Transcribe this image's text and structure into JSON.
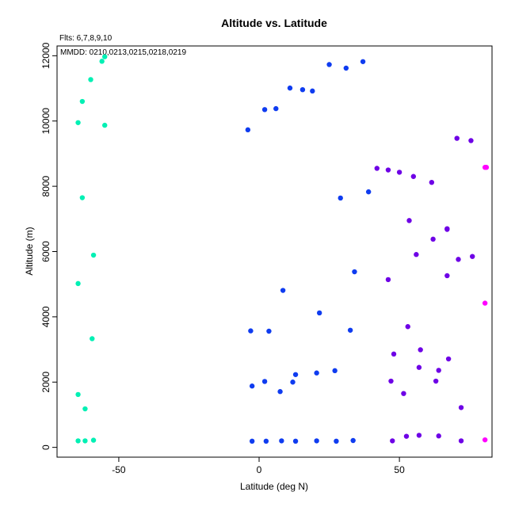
{
  "chart_data": {
    "type": "scatter",
    "title": "Altitude vs. Latitude",
    "xlabel": "Latitude (deg N)",
    "ylabel": "Altitude (m)",
    "annotations": [
      "Flts: 6,7,8,9,10",
      "MMDD: 0210,0213,0215,0218,0219"
    ],
    "xlim": [
      -72,
      83
    ],
    "ylim": [
      -300,
      12300
    ],
    "xticks": [
      -50,
      0,
      50
    ],
    "yticks": [
      0,
      2000,
      4000,
      6000,
      8000,
      10000,
      12000
    ],
    "grid": false,
    "legend": "none",
    "series": [
      {
        "color": "#00f0b4",
        "points": [
          [
            -55,
            11970
          ],
          [
            -56,
            11830
          ],
          [
            -60,
            11270
          ],
          [
            -63,
            10600
          ],
          [
            -64.5,
            9950
          ],
          [
            -55,
            9870
          ],
          [
            -63,
            7650
          ],
          [
            -59,
            5890
          ],
          [
            -64.5,
            5020
          ],
          [
            -59.5,
            3330
          ],
          [
            -64.5,
            1620
          ],
          [
            -62,
            1180
          ],
          [
            -64.5,
            200
          ],
          [
            -62,
            200
          ],
          [
            -59,
            220
          ]
        ]
      },
      {
        "color": "#0f3cf0",
        "points": [
          [
            37,
            11820
          ],
          [
            25,
            11730
          ],
          [
            31,
            11620
          ],
          [
            11,
            11010
          ],
          [
            15.5,
            10960
          ],
          [
            19,
            10920
          ],
          [
            2,
            10350
          ],
          [
            6,
            10380
          ],
          [
            -4,
            9730
          ],
          [
            39,
            7830
          ],
          [
            29,
            7640
          ],
          [
            34,
            5380
          ],
          [
            8.5,
            4810
          ],
          [
            21.5,
            4120
          ],
          [
            -3,
            3570
          ],
          [
            3.5,
            3560
          ],
          [
            32.5,
            3590
          ],
          [
            27,
            2350
          ],
          [
            20.5,
            2280
          ],
          [
            13,
            2230
          ],
          [
            2,
            2020
          ],
          [
            12,
            2000
          ],
          [
            -2.5,
            1880
          ],
          [
            7.5,
            1710
          ],
          [
            -2.5,
            190
          ],
          [
            2.5,
            190
          ],
          [
            8,
            200
          ],
          [
            13,
            190
          ],
          [
            20.5,
            200
          ],
          [
            27.5,
            190
          ],
          [
            33.5,
            210
          ]
        ]
      },
      {
        "color": "#6e00e6",
        "points": [
          [
            70.5,
            9470
          ],
          [
            75.5,
            9400
          ],
          [
            42,
            8550
          ],
          [
            46,
            8500
          ],
          [
            50,
            8430
          ],
          [
            55,
            8300
          ],
          [
            61.5,
            8120
          ],
          [
            53.5,
            6950
          ],
          [
            67,
            6700
          ],
          [
            67,
            6680
          ],
          [
            62,
            6380
          ],
          [
            56,
            5910
          ],
          [
            76,
            5850
          ],
          [
            71,
            5760
          ],
          [
            46,
            5140
          ],
          [
            67,
            5260
          ],
          [
            53,
            3700
          ],
          [
            57.5,
            2990
          ],
          [
            48,
            2860
          ],
          [
            67.5,
            2710
          ],
          [
            57,
            2450
          ],
          [
            64,
            2360
          ],
          [
            47,
            2030
          ],
          [
            63,
            2030
          ],
          [
            51.5,
            1650
          ],
          [
            72,
            1220
          ],
          [
            57,
            370
          ],
          [
            64,
            350
          ],
          [
            52.5,
            340
          ],
          [
            72,
            200
          ],
          [
            47.5,
            200
          ]
        ]
      },
      {
        "color": "#ff00ff",
        "points": [
          [
            80.5,
            8580
          ],
          [
            81,
            8580
          ],
          [
            80.5,
            4420
          ],
          [
            80.5,
            230
          ]
        ]
      }
    ]
  }
}
